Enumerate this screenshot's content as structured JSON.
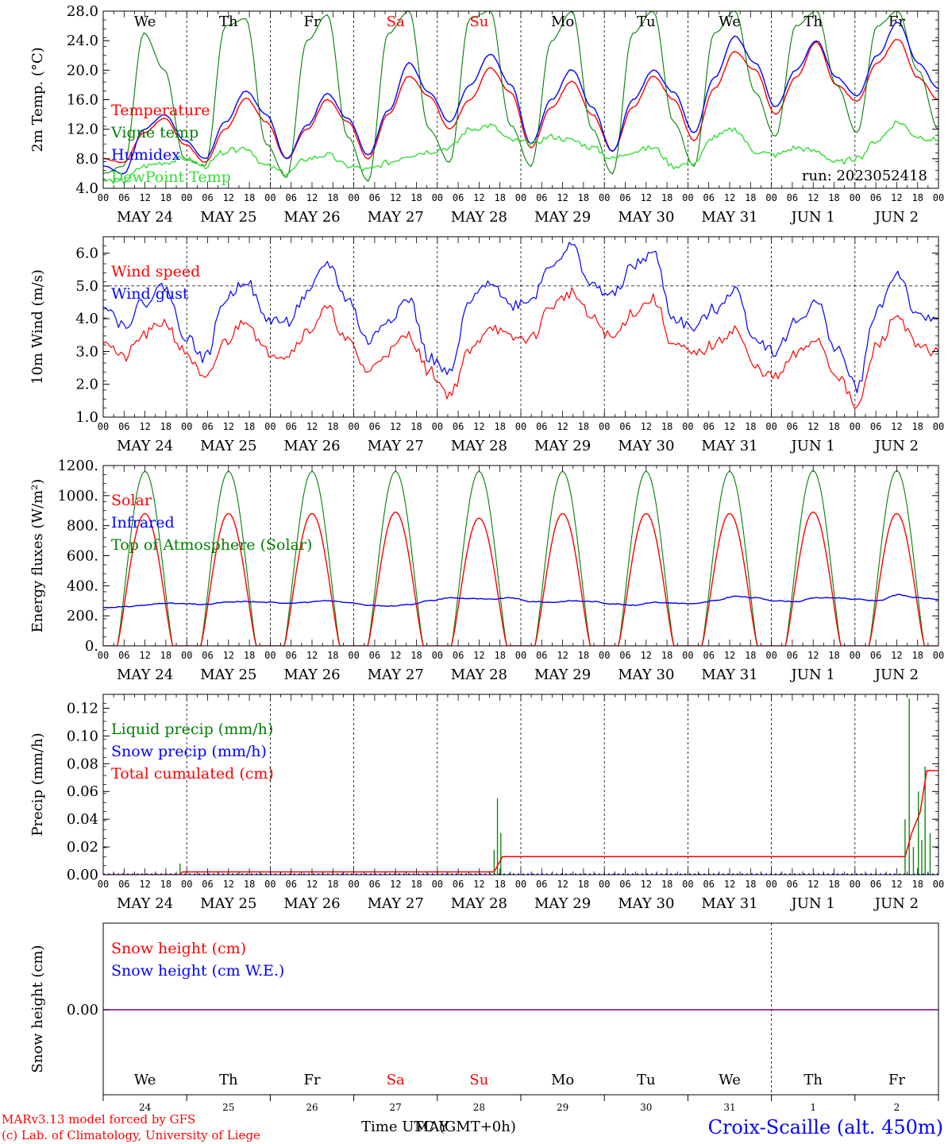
{
  "colors": {
    "red": "#ff0000",
    "green": "#008000",
    "lightgreen": "#33dd33",
    "blue": "#0000ff",
    "purple": "#800080",
    "black": "#000000"
  },
  "timeline": {
    "days": [
      {
        "abbr": "We",
        "weekend": false,
        "date": "MAY 24",
        "num": "24"
      },
      {
        "abbr": "Th",
        "weekend": false,
        "date": "MAY 25",
        "num": "25"
      },
      {
        "abbr": "Fr",
        "weekend": false,
        "date": "MAY 26",
        "num": "26"
      },
      {
        "abbr": "Sa",
        "weekend": true,
        "date": "MAY 27",
        "num": "27"
      },
      {
        "abbr": "Su",
        "weekend": true,
        "date": "MAY 28",
        "num": "28"
      },
      {
        "abbr": "Mo",
        "weekend": false,
        "date": "MAY 29",
        "num": "29"
      },
      {
        "abbr": "Tu",
        "weekend": false,
        "date": "MAY 30",
        "num": "30"
      },
      {
        "abbr": "We",
        "weekend": false,
        "date": "MAY 31",
        "num": "31"
      },
      {
        "abbr": "Th",
        "weekend": false,
        "date": "JUN  1",
        "num": "1"
      },
      {
        "abbr": "Fr",
        "weekend": false,
        "date": "JUN  2",
        "num": "2"
      }
    ],
    "hour_labels": [
      "00",
      "06",
      "12",
      "18"
    ],
    "end_label": "00"
  },
  "chart_data": [
    {
      "type": "line",
      "ylabel": "2m Temp. (°C)",
      "yticks": [
        "4.0",
        "8.0",
        "12.0",
        "16.0",
        "20.0",
        "24.0",
        "28.0"
      ],
      "ylim": [
        4,
        28
      ],
      "annotation": "run: 2023052418",
      "series": [
        {
          "name": "Temperature",
          "color": "red",
          "values": [
            8.0,
            7.5,
            11.5,
            13.5,
            10.0,
            7.5,
            12.0,
            16.2,
            13.0,
            8.0,
            12.0,
            16.0,
            13.0,
            8.0,
            14.0,
            19.2,
            16.5,
            12.0,
            16.0,
            20.3,
            17.0,
            9.5,
            15.0,
            18.5,
            14.0,
            9.0,
            15.0,
            19.2,
            16.0,
            10.5,
            17.5,
            22.5,
            20.0,
            14.0,
            19.0,
            23.8,
            18.0,
            15.8,
            21.0,
            24.2,
            19.0,
            16.0
          ]
        },
        {
          "name": "Vigne temp",
          "color": "green",
          "values": [
            6.0,
            7.0,
            25.0,
            20.0,
            8.0,
            7.0,
            26.0,
            27.0,
            10.0,
            5.5,
            24.0,
            27.5,
            11.0,
            5.0,
            25.0,
            28.0,
            12.0,
            7.5,
            27.0,
            28.0,
            12.5,
            7.0,
            24.0,
            28.0,
            12.0,
            6.0,
            25.0,
            28.0,
            13.0,
            7.0,
            25.0,
            28.0,
            17.0,
            11.0,
            26.0,
            28.0,
            18.0,
            11.5,
            26.0,
            28.0,
            20.0,
            12.0
          ]
        },
        {
          "name": "Humidex",
          "color": "blue",
          "values": [
            7.0,
            6.0,
            12.0,
            14.0,
            10.5,
            8.0,
            13.0,
            17.2,
            14.0,
            8.0,
            12.5,
            16.8,
            13.5,
            8.5,
            14.5,
            21.0,
            17.0,
            13.0,
            18.0,
            22.2,
            18.0,
            10.0,
            16.0,
            20.1,
            15.0,
            9.0,
            16.0,
            20.0,
            17.0,
            11.5,
            19.0,
            24.6,
            21.0,
            15.0,
            20.0,
            24.0,
            19.0,
            16.5,
            22.0,
            26.5,
            21.0,
            17.5
          ]
        },
        {
          "name": "DewPoint Temp",
          "color": "lightgreen",
          "values": [
            5.0,
            5.0,
            7.0,
            7.5,
            8.0,
            7.0,
            9.0,
            9.5,
            7.0,
            6.0,
            8.0,
            8.5,
            7.0,
            6.5,
            7.5,
            8.5,
            9.0,
            9.5,
            12.0,
            12.5,
            10.5,
            10.0,
            11.0,
            10.5,
            9.5,
            8.0,
            9.0,
            9.5,
            7.0,
            7.5,
            11.0,
            12.0,
            9.0,
            8.5,
            9.5,
            9.0,
            7.5,
            8.0,
            10.5,
            13.0,
            11.0,
            10.5
          ]
        }
      ]
    },
    {
      "type": "line",
      "ylabel": "10m Wind (m/s)",
      "yticks": [
        "1.0",
        "2.0",
        "3.0",
        "4.0",
        "5.0",
        "6.0"
      ],
      "ylim": [
        1,
        6.5
      ],
      "reference_line": 5.0,
      "series": [
        {
          "name": "Wind speed",
          "color": "red",
          "values": [
            3.4,
            2.8,
            3.5,
            3.9,
            3.0,
            2.1,
            3.3,
            4.0,
            3.0,
            2.9,
            3.6,
            4.3,
            3.3,
            2.4,
            3.0,
            3.5,
            2.4,
            1.7,
            3.0,
            3.8,
            3.4,
            3.4,
            4.4,
            4.8,
            4.0,
            3.4,
            4.2,
            4.6,
            3.2,
            2.9,
            3.2,
            3.7,
            2.5,
            2.2,
            2.9,
            3.4,
            2.3,
            1.3,
            3.2,
            4.1,
            3.1,
            3.0
          ]
        },
        {
          "name": "Wind gust",
          "color": "blue",
          "values": [
            4.5,
            3.8,
            4.5,
            5.0,
            3.5,
            2.8,
            4.6,
            5.2,
            4.0,
            3.9,
            4.7,
            5.7,
            4.6,
            3.3,
            4.0,
            4.6,
            2.8,
            2.3,
            4.5,
            5.2,
            4.4,
            4.6,
            5.7,
            6.2,
            5.0,
            4.7,
            5.6,
            6.0,
            4.0,
            3.7,
            4.3,
            4.9,
            3.4,
            3.0,
            3.9,
            4.5,
            3.1,
            1.9,
            4.3,
            5.4,
            4.0,
            4.0
          ]
        }
      ]
    },
    {
      "type": "line",
      "ylabel": "Energy fluxes (W/m²)",
      "yticks": [
        "0.",
        "200.",
        "400.",
        "600.",
        "800.",
        "1000.",
        "1200."
      ],
      "ylim": [
        0,
        1200
      ],
      "series": [
        {
          "name": "Solar",
          "color": "red",
          "values": [
            {
              "day": 0,
              "peak": 880
            },
            {
              "day": 1,
              "peak": 880
            },
            {
              "day": 2,
              "peak": 880
            },
            {
              "day": 3,
              "peak": 890
            },
            {
              "day": 4,
              "peak": 850
            },
            {
              "day": 5,
              "peak": 880
            },
            {
              "day": 6,
              "peak": 880
            },
            {
              "day": 7,
              "peak": 880
            },
            {
              "day": 8,
              "peak": 890
            },
            {
              "day": 9,
              "peak": 880
            }
          ]
        },
        {
          "name": "Infrared",
          "color": "blue",
          "values": [
            255,
            260,
            270,
            285,
            280,
            275,
            290,
            295,
            290,
            285,
            290,
            300,
            290,
            270,
            265,
            275,
            300,
            320,
            315,
            310,
            320,
            295,
            290,
            300,
            295,
            280,
            270,
            290,
            285,
            280,
            300,
            330,
            320,
            300,
            295,
            320,
            320,
            310,
            300,
            340,
            320,
            310
          ]
        },
        {
          "name": "Top of Atmosphere (Solar)",
          "color": "green",
          "values": [
            {
              "day": 0,
              "peak": 1160
            },
            {
              "day": 1,
              "peak": 1160
            },
            {
              "day": 2,
              "peak": 1160
            },
            {
              "day": 3,
              "peak": 1160
            },
            {
              "day": 4,
              "peak": 1160
            },
            {
              "day": 5,
              "peak": 1160
            },
            {
              "day": 6,
              "peak": 1160
            },
            {
              "day": 7,
              "peak": 1160
            },
            {
              "day": 8,
              "peak": 1165
            },
            {
              "day": 9,
              "peak": 1165
            }
          ]
        }
      ]
    },
    {
      "type": "line",
      "ylabel": "Precip (mm/h)",
      "yticks": [
        "0.00",
        "0.02",
        "0.04",
        "0.06",
        "0.08",
        "0.10",
        "0.12"
      ],
      "ylim": [
        0,
        0.13
      ],
      "series": [
        {
          "name": "Liquid precip (mm/h)",
          "color": "green",
          "values": [
            {
              "x": 0.92,
              "y": 0.008
            },
            {
              "x": 4.68,
              "y": 0.018
            },
            {
              "x": 4.72,
              "y": 0.055
            },
            {
              "x": 4.76,
              "y": 0.03
            },
            {
              "x": 9.6,
              "y": 0.04
            },
            {
              "x": 9.65,
              "y": 0.127
            },
            {
              "x": 9.7,
              "y": 0.02
            },
            {
              "x": 9.76,
              "y": 0.06
            },
            {
              "x": 9.8,
              "y": 0.025
            },
            {
              "x": 9.84,
              "y": 0.078
            },
            {
              "x": 9.9,
              "y": 0.03
            }
          ]
        },
        {
          "name": "Snow precip (mm/h)",
          "color": "blue",
          "values": [
            0
          ]
        },
        {
          "name": "Total cumulated (cm)",
          "color": "red",
          "values": [
            {
              "x": 0.0,
              "y": 0.0
            },
            {
              "x": 0.92,
              "y": 0.0
            },
            {
              "x": 0.95,
              "y": 0.002
            },
            {
              "x": 4.68,
              "y": 0.002
            },
            {
              "x": 4.78,
              "y": 0.013
            },
            {
              "x": 9.6,
              "y": 0.013
            },
            {
              "x": 9.68,
              "y": 0.03
            },
            {
              "x": 9.78,
              "y": 0.045
            },
            {
              "x": 9.86,
              "y": 0.075
            },
            {
              "x": 10.0,
              "y": 0.075
            }
          ]
        }
      ]
    },
    {
      "type": "line",
      "ylabel": "Snow height (cm)",
      "yticks": [
        "0.00"
      ],
      "series": [
        {
          "name": "Snow height (cm)",
          "color": "red",
          "values": [
            0
          ]
        },
        {
          "name": "Snow height (cm W.E.)",
          "color": "blue",
          "values": [
            0
          ]
        }
      ]
    }
  ],
  "footer": {
    "credit1": "MARv3.13 model forced by GFS",
    "credit2": "(c) Lab. of Climatology, University of Liege",
    "time_label_a": "Time UTC (GMT+0h)",
    "time_label_b": "MAY",
    "location": "Croix-Scaille (alt. 450m)"
  }
}
